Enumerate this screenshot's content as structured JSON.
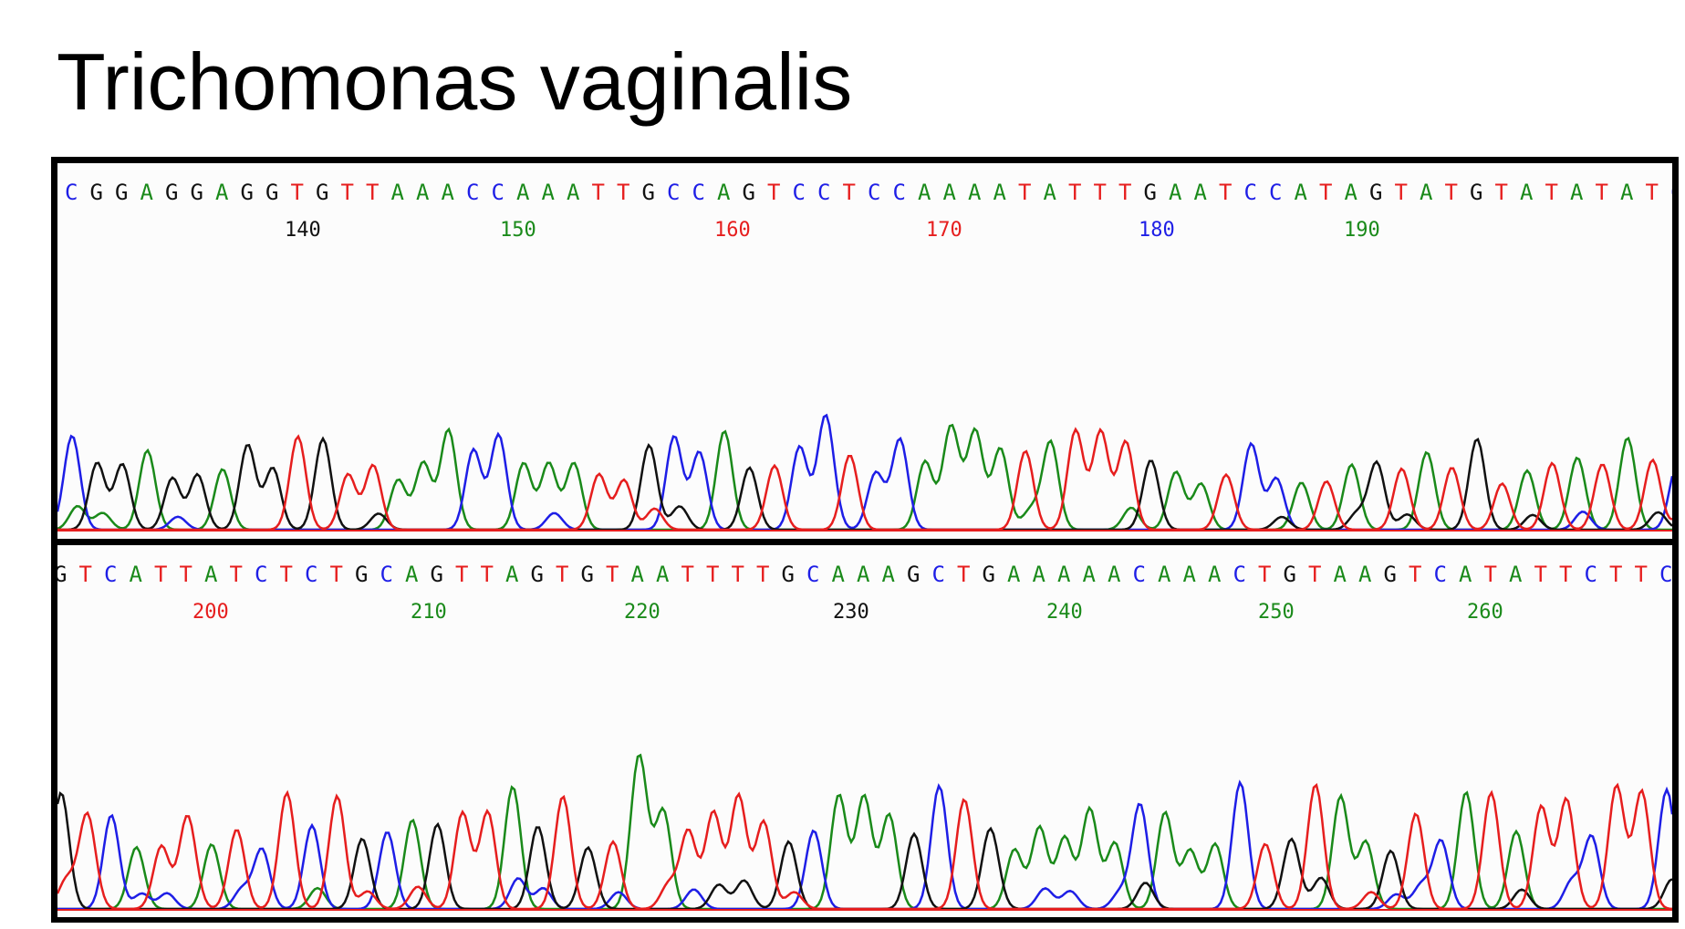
{
  "title": "Trichomonas vaginalis",
  "colors": {
    "A": "#1a8a1a",
    "C": "#1e1ee6",
    "G": "#111111",
    "T": "#e61e1e"
  },
  "chart_data": [
    {
      "type": "line",
      "sequence": "CGGAGGAGGTGTTAAACCAAATTGCCAGTCCTCCAAAATATTTGAATCCATAGTATGTATATATC",
      "position_labels": [
        140,
        150,
        160,
        170,
        180,
        190
      ],
      "series": [
        {
          "name": "A",
          "color": "#1a8a1a"
        },
        {
          "name": "C",
          "color": "#1e1ee6"
        },
        {
          "name": "G",
          "color": "#111111"
        },
        {
          "name": "T",
          "color": "#e61e1e"
        }
      ]
    },
    {
      "type": "line",
      "sequence": "GTCATTATCTCTGCAGTTAGTGTAATTTTGCAAAGCTGAAAAACAAACTGTAAGTCATATTCTTC",
      "position_labels": [
        200,
        210,
        220,
        230,
        240,
        250,
        260
      ],
      "series": [
        {
          "name": "A",
          "color": "#1a8a1a"
        },
        {
          "name": "C",
          "color": "#1e1ee6"
        },
        {
          "name": "G",
          "color": "#111111"
        },
        {
          "name": "T",
          "color": "#e61e1e"
        }
      ]
    }
  ]
}
